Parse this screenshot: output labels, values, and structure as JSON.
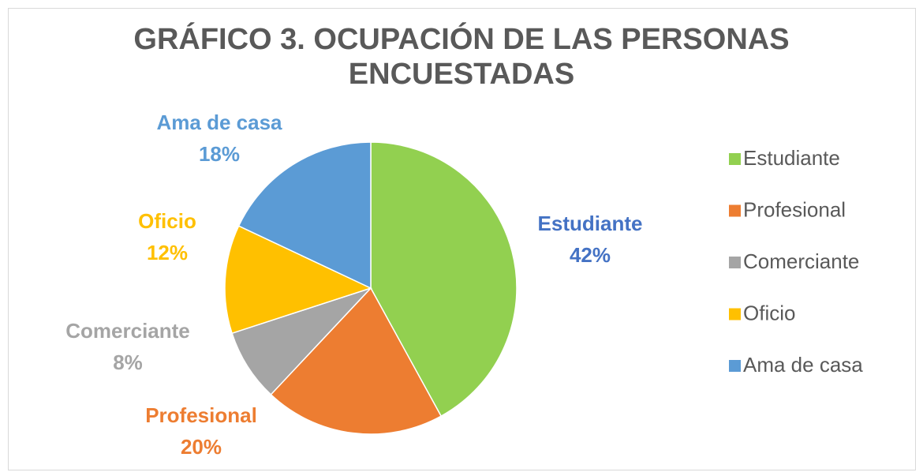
{
  "chart_data": {
    "type": "pie",
    "title": "GRÁFICO 3. OCUPACIÓN DE LAS PERSONAS ENCUESTADAS",
    "categories": [
      "Estudiante",
      "Profesional",
      "Comerciante",
      "Oficio",
      "Ama de casa"
    ],
    "values": [
      42,
      20,
      8,
      12,
      18
    ],
    "value_labels": [
      "42%",
      "20%",
      "8%",
      "12%",
      "18%"
    ],
    "colors": [
      "#92d050",
      "#ed7d31",
      "#a5a5a5",
      "#ffc000",
      "#5b9bd5"
    ],
    "label_colors": [
      "#4472c4",
      "#ed7d31",
      "#a5a5a5",
      "#ffc000",
      "#5b9bd5"
    ],
    "legend": "right"
  }
}
